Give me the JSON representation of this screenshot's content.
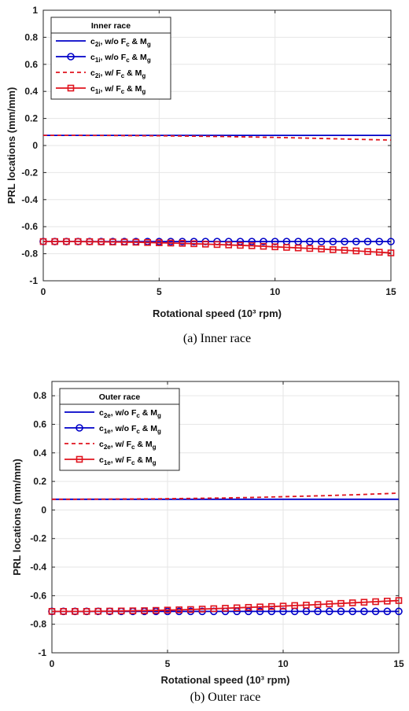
{
  "colors": {
    "blue": "#0000c8",
    "red": "#e0141e",
    "grid": "#e6e6e6",
    "axis": "#262626"
  },
  "chart_data": [
    {
      "type": "line",
      "title": "",
      "caption": "(a) Inner race",
      "xlabel": "Rotational speed (10³ rpm)",
      "ylabel": "PRL locations (mm/mm)",
      "xlim": [
        0,
        15
      ],
      "ylim": [
        -1,
        1
      ],
      "xticks": [
        0,
        5,
        10,
        15
      ],
      "yticks": [
        -1,
        -0.8,
        -0.6,
        -0.4,
        -0.2,
        0,
        0.2,
        0.4,
        0.6,
        0.8,
        1
      ],
      "xtick_labels": [
        "0",
        "5",
        "10",
        "15"
      ],
      "ytick_labels": [
        "-1",
        "-0.8",
        "-0.6",
        "-0.4",
        "-0.2",
        "0",
        "0.2",
        "0.4",
        "0.6",
        "0.8",
        "1"
      ],
      "grid": true,
      "legend": {
        "title": "Inner race",
        "placement": "top-left",
        "entries": [
          {
            "base": "c",
            "sub": "2i",
            "text": ", w/o F",
            "sub2": "c",
            "text2": " & M",
            "sub3": "g"
          },
          {
            "base": "c",
            "sub": "1i",
            "text": ", w/o F",
            "sub2": "c",
            "text2": " & M",
            "sub3": "g"
          },
          {
            "base": "c",
            "sub": "2i",
            "text": ", w/ F",
            "sub2": "c",
            "text2": " & M",
            "sub3": "g"
          },
          {
            "base": "c",
            "sub": "1i",
            "text": ", w/ F",
            "sub2": "c",
            "text2": " & M",
            "sub3": "g"
          }
        ]
      },
      "x": [
        0,
        0.5,
        1,
        1.5,
        2,
        2.5,
        3,
        3.5,
        4,
        4.5,
        5,
        5.5,
        6,
        6.5,
        7,
        7.5,
        8,
        8.5,
        9,
        9.5,
        10,
        10.5,
        11,
        11.5,
        12,
        12.5,
        13,
        13.5,
        14,
        14.5,
        15
      ],
      "series": [
        {
          "color": "blue",
          "style": "solid",
          "marker": "none",
          "values": [
            0.075,
            0.075,
            0.075,
            0.075,
            0.075,
            0.075,
            0.075,
            0.075,
            0.075,
            0.075,
            0.075,
            0.075,
            0.075,
            0.075,
            0.075,
            0.075,
            0.075,
            0.075,
            0.075,
            0.075,
            0.075,
            0.075,
            0.075,
            0.075,
            0.075,
            0.075,
            0.075,
            0.075,
            0.075,
            0.075,
            0.075
          ]
        },
        {
          "color": "blue",
          "style": "solid",
          "marker": "circle",
          "values": [
            -0.71,
            -0.71,
            -0.71,
            -0.71,
            -0.71,
            -0.71,
            -0.71,
            -0.71,
            -0.71,
            -0.71,
            -0.71,
            -0.71,
            -0.71,
            -0.71,
            -0.71,
            -0.71,
            -0.71,
            -0.71,
            -0.71,
            -0.71,
            -0.71,
            -0.71,
            -0.71,
            -0.71,
            -0.71,
            -0.71,
            -0.71,
            -0.71,
            -0.71,
            -0.71,
            -0.71
          ]
        },
        {
          "color": "red",
          "style": "dashed",
          "marker": "none",
          "values": [
            0.075,
            0.075,
            0.075,
            0.075,
            0.074,
            0.074,
            0.074,
            0.073,
            0.073,
            0.072,
            0.072,
            0.071,
            0.07,
            0.069,
            0.068,
            0.067,
            0.066,
            0.064,
            0.063,
            0.061,
            0.06,
            0.058,
            0.056,
            0.054,
            0.052,
            0.05,
            0.048,
            0.046,
            0.044,
            0.042,
            0.04
          ]
        },
        {
          "color": "red",
          "style": "solid",
          "marker": "square",
          "values": [
            -0.71,
            -0.71,
            -0.71,
            -0.71,
            -0.711,
            -0.712,
            -0.713,
            -0.714,
            -0.715,
            -0.717,
            -0.719,
            -0.721,
            -0.723,
            -0.726,
            -0.729,
            -0.732,
            -0.735,
            -0.738,
            -0.741,
            -0.745,
            -0.749,
            -0.753,
            -0.757,
            -0.761,
            -0.765,
            -0.77,
            -0.774,
            -0.779,
            -0.784,
            -0.789,
            -0.794
          ]
        }
      ]
    },
    {
      "type": "line",
      "title": "",
      "caption": "(b) Outer race",
      "xlabel": "Rotational speed (10³ rpm)",
      "ylabel": "PRL locations (mm/mm)",
      "xlim": [
        0,
        15
      ],
      "ylim": [
        -1,
        0.9
      ],
      "xticks": [
        0,
        5,
        10,
        15
      ],
      "yticks": [
        -1,
        -0.8,
        -0.6,
        -0.4,
        -0.2,
        0,
        0.2,
        0.4,
        0.6,
        0.8
      ],
      "xtick_labels": [
        "0",
        "5",
        "10",
        "15"
      ],
      "ytick_labels": [
        "-1",
        "-0.8",
        "-0.6",
        "-0.4",
        "-0.2",
        "0",
        "0.2",
        "0.4",
        "0.6",
        "0.8"
      ],
      "grid": true,
      "legend": {
        "title": "Outer race",
        "placement": "top-left",
        "entries": [
          {
            "base": "c",
            "sub": "2e",
            "text": ", w/o F",
            "sub2": "c",
            "text2": " & M",
            "sub3": "g"
          },
          {
            "base": "c",
            "sub": "1e",
            "text": ", w/o F",
            "sub2": "c",
            "text2": " & M",
            "sub3": "g"
          },
          {
            "base": "c",
            "sub": "2e",
            "text": ", w/ F",
            "sub2": "c",
            "text2": " & M",
            "sub3": "g"
          },
          {
            "base": "c",
            "sub": "1e",
            "text": ", w/ F",
            "sub2": "c",
            "text2": " & M",
            "sub3": "g"
          }
        ]
      },
      "x": [
        0,
        0.5,
        1,
        1.5,
        2,
        2.5,
        3,
        3.5,
        4,
        4.5,
        5,
        5.5,
        6,
        6.5,
        7,
        7.5,
        8,
        8.5,
        9,
        9.5,
        10,
        10.5,
        11,
        11.5,
        12,
        12.5,
        13,
        13.5,
        14,
        14.5,
        15
      ],
      "series": [
        {
          "color": "blue",
          "style": "solid",
          "marker": "none",
          "values": [
            0.075,
            0.075,
            0.075,
            0.075,
            0.075,
            0.075,
            0.075,
            0.075,
            0.075,
            0.075,
            0.075,
            0.075,
            0.075,
            0.075,
            0.075,
            0.075,
            0.075,
            0.075,
            0.075,
            0.075,
            0.075,
            0.075,
            0.075,
            0.075,
            0.075,
            0.075,
            0.075,
            0.075,
            0.075,
            0.075,
            0.075
          ]
        },
        {
          "color": "blue",
          "style": "solid",
          "marker": "circle",
          "values": [
            -0.71,
            -0.71,
            -0.71,
            -0.71,
            -0.71,
            -0.71,
            -0.71,
            -0.71,
            -0.71,
            -0.71,
            -0.71,
            -0.71,
            -0.71,
            -0.71,
            -0.71,
            -0.71,
            -0.71,
            -0.71,
            -0.71,
            -0.71,
            -0.71,
            -0.71,
            -0.71,
            -0.71,
            -0.71,
            -0.71,
            -0.71,
            -0.71,
            -0.71,
            -0.71,
            -0.71
          ]
        },
        {
          "color": "red",
          "style": "dashed",
          "marker": "none",
          "values": [
            0.075,
            0.075,
            0.075,
            0.076,
            0.076,
            0.076,
            0.077,
            0.077,
            0.078,
            0.078,
            0.079,
            0.08,
            0.081,
            0.082,
            0.083,
            0.084,
            0.086,
            0.087,
            0.089,
            0.091,
            0.093,
            0.095,
            0.097,
            0.099,
            0.101,
            0.104,
            0.106,
            0.109,
            0.112,
            0.115,
            0.118
          ]
        },
        {
          "color": "red",
          "style": "solid",
          "marker": "square",
          "values": [
            -0.71,
            -0.71,
            -0.71,
            -0.71,
            -0.709,
            -0.708,
            -0.707,
            -0.706,
            -0.705,
            -0.703,
            -0.701,
            -0.699,
            -0.697,
            -0.694,
            -0.691,
            -0.688,
            -0.685,
            -0.682,
            -0.679,
            -0.676,
            -0.673,
            -0.669,
            -0.666,
            -0.662,
            -0.658,
            -0.654,
            -0.65,
            -0.646,
            -0.642,
            -0.638,
            -0.634
          ]
        }
      ]
    }
  ]
}
